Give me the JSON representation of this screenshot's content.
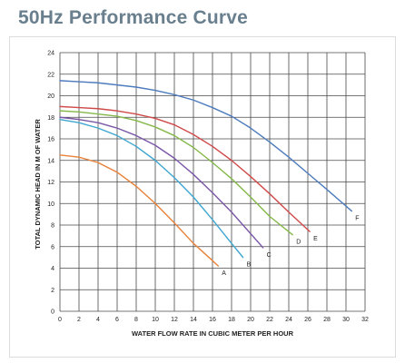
{
  "page": {
    "title": "50Hz Performance Curve"
  },
  "chart_data": {
    "type": "line",
    "title": "",
    "xlabel": "WATER FLOW RATE IN CUBIC METER PER HOUR",
    "ylabel": "TOTAL DYNAMIC HEAD IN M OF WATER",
    "xlim": [
      0,
      32
    ],
    "ylim": [
      0,
      24
    ],
    "xticks": [
      0,
      2,
      4,
      6,
      8,
      10,
      12,
      14,
      16,
      18,
      20,
      22,
      24,
      26,
      28,
      30,
      32
    ],
    "yticks": [
      0,
      2,
      4,
      6,
      8,
      10,
      12,
      14,
      16,
      18,
      20,
      22,
      24
    ],
    "grid": true,
    "legend": "none",
    "series": [
      {
        "name": "A",
        "color": "#e8823a",
        "x": [
          0,
          2,
          4,
          6,
          8,
          10,
          12,
          14,
          16,
          16.6
        ],
        "y": [
          14.5,
          14.3,
          13.8,
          12.9,
          11.6,
          10.0,
          8.2,
          6.3,
          4.7,
          4.2
        ]
      },
      {
        "name": "B",
        "color": "#3fa6cf",
        "x": [
          0,
          2,
          4,
          6,
          8,
          10,
          12,
          14,
          16,
          18,
          19.2
        ],
        "y": [
          17.8,
          17.5,
          17.0,
          16.3,
          15.3,
          14.0,
          12.4,
          10.6,
          8.5,
          6.3,
          5.0
        ]
      },
      {
        "name": "C",
        "color": "#7a57a6",
        "x": [
          0,
          2,
          4,
          6,
          8,
          10,
          12,
          14,
          16,
          18,
          20,
          21.3
        ],
        "y": [
          18.0,
          17.8,
          17.5,
          17.0,
          16.3,
          15.4,
          14.2,
          12.7,
          11.0,
          9.2,
          7.2,
          5.9
        ]
      },
      {
        "name": "D",
        "color": "#84b84a",
        "x": [
          0,
          2,
          4,
          6,
          8,
          10,
          12,
          14,
          16,
          18,
          20,
          22,
          24.4
        ],
        "y": [
          18.6,
          18.5,
          18.3,
          18.1,
          17.7,
          17.1,
          16.3,
          15.2,
          13.8,
          12.3,
          10.6,
          8.8,
          7.1
        ]
      },
      {
        "name": "E",
        "color": "#cf4a4a",
        "x": [
          0,
          2,
          4,
          6,
          8,
          10,
          12,
          14,
          16,
          18,
          20,
          22,
          24,
          26.2
        ],
        "y": [
          19.0,
          18.9,
          18.8,
          18.6,
          18.3,
          17.9,
          17.3,
          16.4,
          15.3,
          14.0,
          12.5,
          10.9,
          9.2,
          7.4
        ]
      },
      {
        "name": "F",
        "color": "#4d7bbd",
        "x": [
          0,
          2,
          4,
          6,
          8,
          10,
          12,
          14,
          16,
          18,
          20,
          22,
          24,
          26,
          28,
          30.6
        ],
        "y": [
          21.4,
          21.3,
          21.2,
          21.0,
          20.8,
          20.5,
          20.1,
          19.6,
          18.9,
          18.1,
          17.0,
          15.7,
          14.3,
          12.8,
          11.3,
          9.3
        ]
      }
    ]
  }
}
